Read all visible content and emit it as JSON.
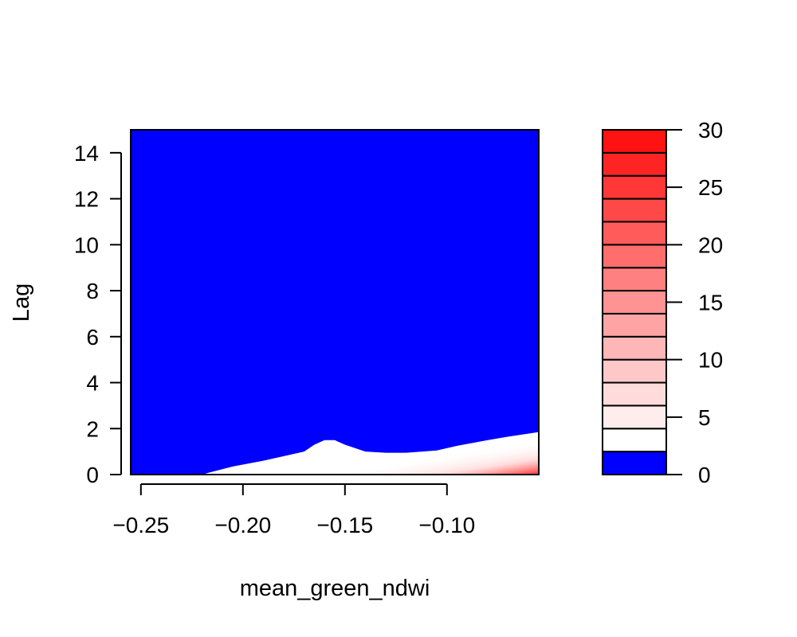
{
  "chart_data": {
    "type": "heatmap",
    "title": "",
    "xlabel": "mean_green_ndwi",
    "ylabel": "Lag",
    "xlim": [
      -0.255,
      -0.055
    ],
    "ylim": [
      0,
      15
    ],
    "x_ticks": [
      -0.25,
      -0.2,
      -0.15,
      -0.1
    ],
    "x_tick_labels": [
      "−0.25",
      "−0.20",
      "−0.15",
      "−0.10"
    ],
    "y_ticks": [
      0,
      2,
      4,
      6,
      8,
      10,
      12,
      14
    ],
    "y_tick_labels": [
      "0",
      "2",
      "4",
      "6",
      "8",
      "10",
      "12",
      "14"
    ],
    "grid": false,
    "background_color": "#0000ff",
    "contour_boundary": {
      "level": 2,
      "x": [
        -0.255,
        -0.22,
        -0.216,
        -0.205,
        -0.19,
        -0.17,
        -0.165,
        -0.16,
        -0.155,
        -0.15,
        -0.14,
        -0.13,
        -0.12,
        -0.105,
        -0.095,
        -0.08,
        -0.07,
        -0.055
      ],
      "y": [
        0,
        0,
        0.1,
        0.35,
        0.6,
        1.0,
        1.3,
        1.5,
        1.5,
        1.3,
        1.0,
        0.95,
        0.95,
        1.05,
        1.25,
        1.5,
        1.65,
        1.85
      ]
    },
    "colorbar": {
      "levels": [
        0,
        2,
        4,
        6,
        8,
        10,
        12,
        14,
        16,
        18,
        20,
        22,
        24,
        26,
        28,
        30
      ],
      "colors": [
        "#0000ff",
        "#ffffff",
        "#ffeded",
        "#ffdbdb",
        "#ffc8c8",
        "#ffb6b6",
        "#ffa4a4",
        "#ff9292",
        "#ff8080",
        "#ff6d6d",
        "#ff5b5b",
        "#ff4949",
        "#ff3737",
        "#ff2424",
        "#ff1212"
      ],
      "ticks": [
        0,
        5,
        10,
        15,
        20,
        25,
        30
      ],
      "tick_labels": [
        "0",
        "5",
        "10",
        "15",
        "20",
        "25",
        "30"
      ]
    }
  }
}
